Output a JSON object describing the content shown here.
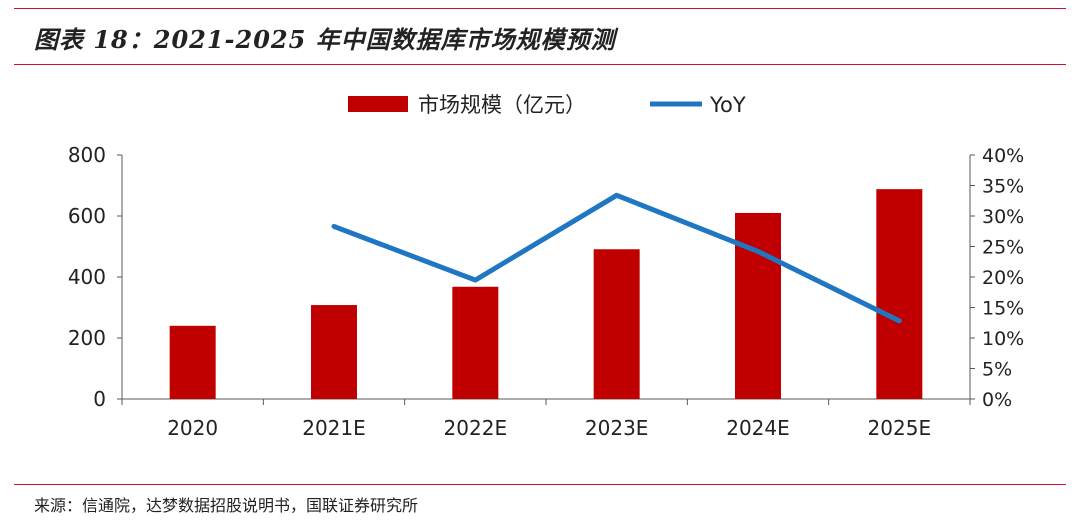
{
  "header": {
    "title": "图表 18：2021-2025 年中国数据库市场规模预测"
  },
  "footer": {
    "source": "来源：信通院，达梦数据招股说明书，国联证券研究所"
  },
  "colors": {
    "bar": "#c00000",
    "line": "#1f77c4",
    "rule": "#c8102e",
    "axis": "#595959"
  },
  "chart_data": {
    "type": "bar+line",
    "categories": [
      "2020",
      "2021E",
      "2022E",
      "2023E",
      "2024E",
      "2025E"
    ],
    "series": [
      {
        "name": "市场规模（亿元）",
        "type": "bar",
        "axis": "left",
        "values": [
          240,
          308,
          368,
          491,
          610,
          688
        ]
      },
      {
        "name": "YoY",
        "type": "line",
        "axis": "right",
        "values": [
          null,
          28.3,
          19.5,
          33.4,
          24.2,
          12.8
        ]
      }
    ],
    "y_left": {
      "min": 0,
      "max": 800,
      "ticks": [
        "0",
        "200",
        "400",
        "600",
        "800"
      ]
    },
    "y_right": {
      "min": 0,
      "max": 40,
      "ticks": [
        "0%",
        "5%",
        "10%",
        "15%",
        "20%",
        "25%",
        "30%",
        "35%",
        "40%"
      ]
    },
    "legend": {
      "placement": "top-center",
      "items": [
        "市场规模（亿元）",
        "YoY"
      ]
    },
    "grid": false
  }
}
